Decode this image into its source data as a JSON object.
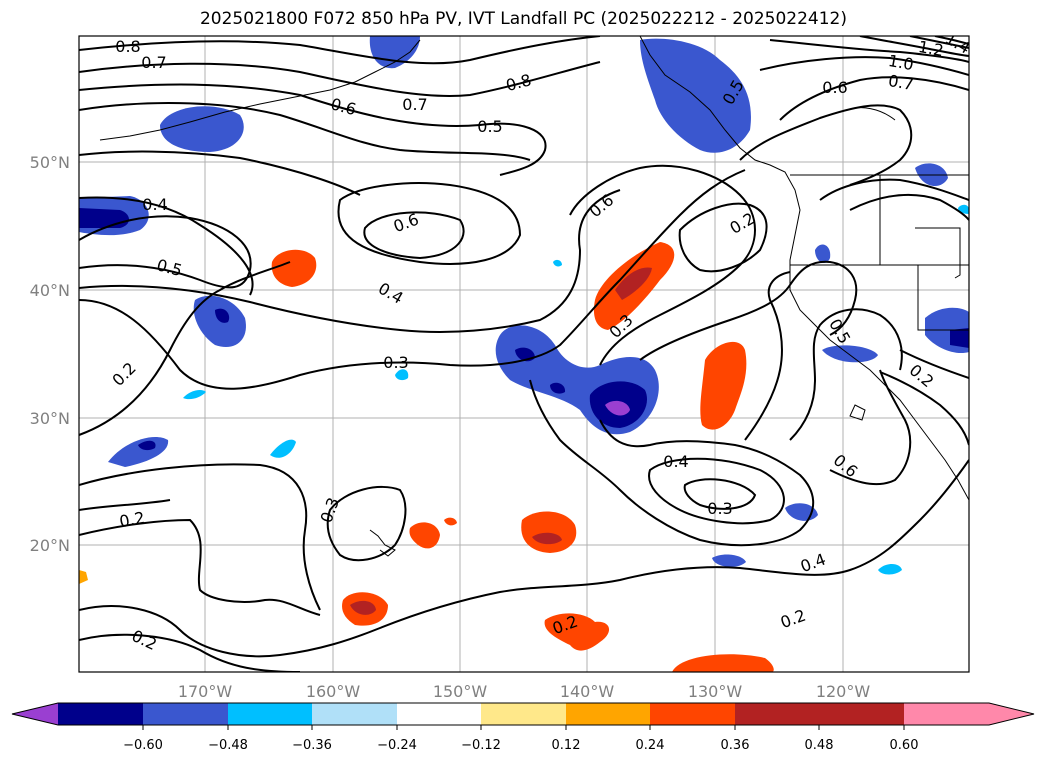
{
  "title": "2025021800 F072 850 hPa PV, IVT Landfall PC (2025022212 - 2025022412)",
  "map": {
    "lat_ticks": [
      "50°N",
      "40°N",
      "30°N",
      "20°N"
    ],
    "lon_ticks": [
      "170°W",
      "160°W",
      "150°W",
      "140°W",
      "130°W",
      "120°W"
    ],
    "contour_labels": [
      {
        "text": "0.8"
      },
      {
        "text": "0.7"
      },
      {
        "text": "0.6"
      },
      {
        "text": "0.7"
      },
      {
        "text": "0.8"
      },
      {
        "text": "0.5"
      },
      {
        "text": "0.5"
      },
      {
        "text": "0.6"
      },
      {
        "text": "0.7"
      },
      {
        "text": "1.0"
      },
      {
        "text": "1.2"
      },
      {
        "text": "1.4"
      },
      {
        "text": "0.4"
      },
      {
        "text": "0.5"
      },
      {
        "text": "0.6"
      },
      {
        "text": "0.6"
      },
      {
        "text": "0.2"
      },
      {
        "text": "0.4"
      },
      {
        "text": "0.3"
      },
      {
        "text": "0.3"
      },
      {
        "text": "0.2"
      },
      {
        "text": "0.5"
      },
      {
        "text": "0.2"
      },
      {
        "text": "0.4"
      },
      {
        "text": "0.3"
      },
      {
        "text": "0.6"
      },
      {
        "text": "0.2"
      },
      {
        "text": "0.3"
      },
      {
        "text": "0.4"
      },
      {
        "text": "0.2"
      },
      {
        "text": "0.2"
      },
      {
        "text": "0.2"
      }
    ]
  },
  "colorbar": {
    "colors": [
      "#9a3fd1",
      "#00008b",
      "#3a57cf",
      "#00bfff",
      "#b0e0f8",
      "#ffffff",
      "#ffe88a",
      "#ffa500",
      "#ff4500",
      "#b22222",
      "#ff88aa"
    ],
    "tick_labels": [
      "−0.60",
      "−0.48",
      "−0.36",
      "−0.24",
      "−0.12",
      "0.12",
      "0.24",
      "0.36",
      "0.48",
      "0.60"
    ]
  }
}
